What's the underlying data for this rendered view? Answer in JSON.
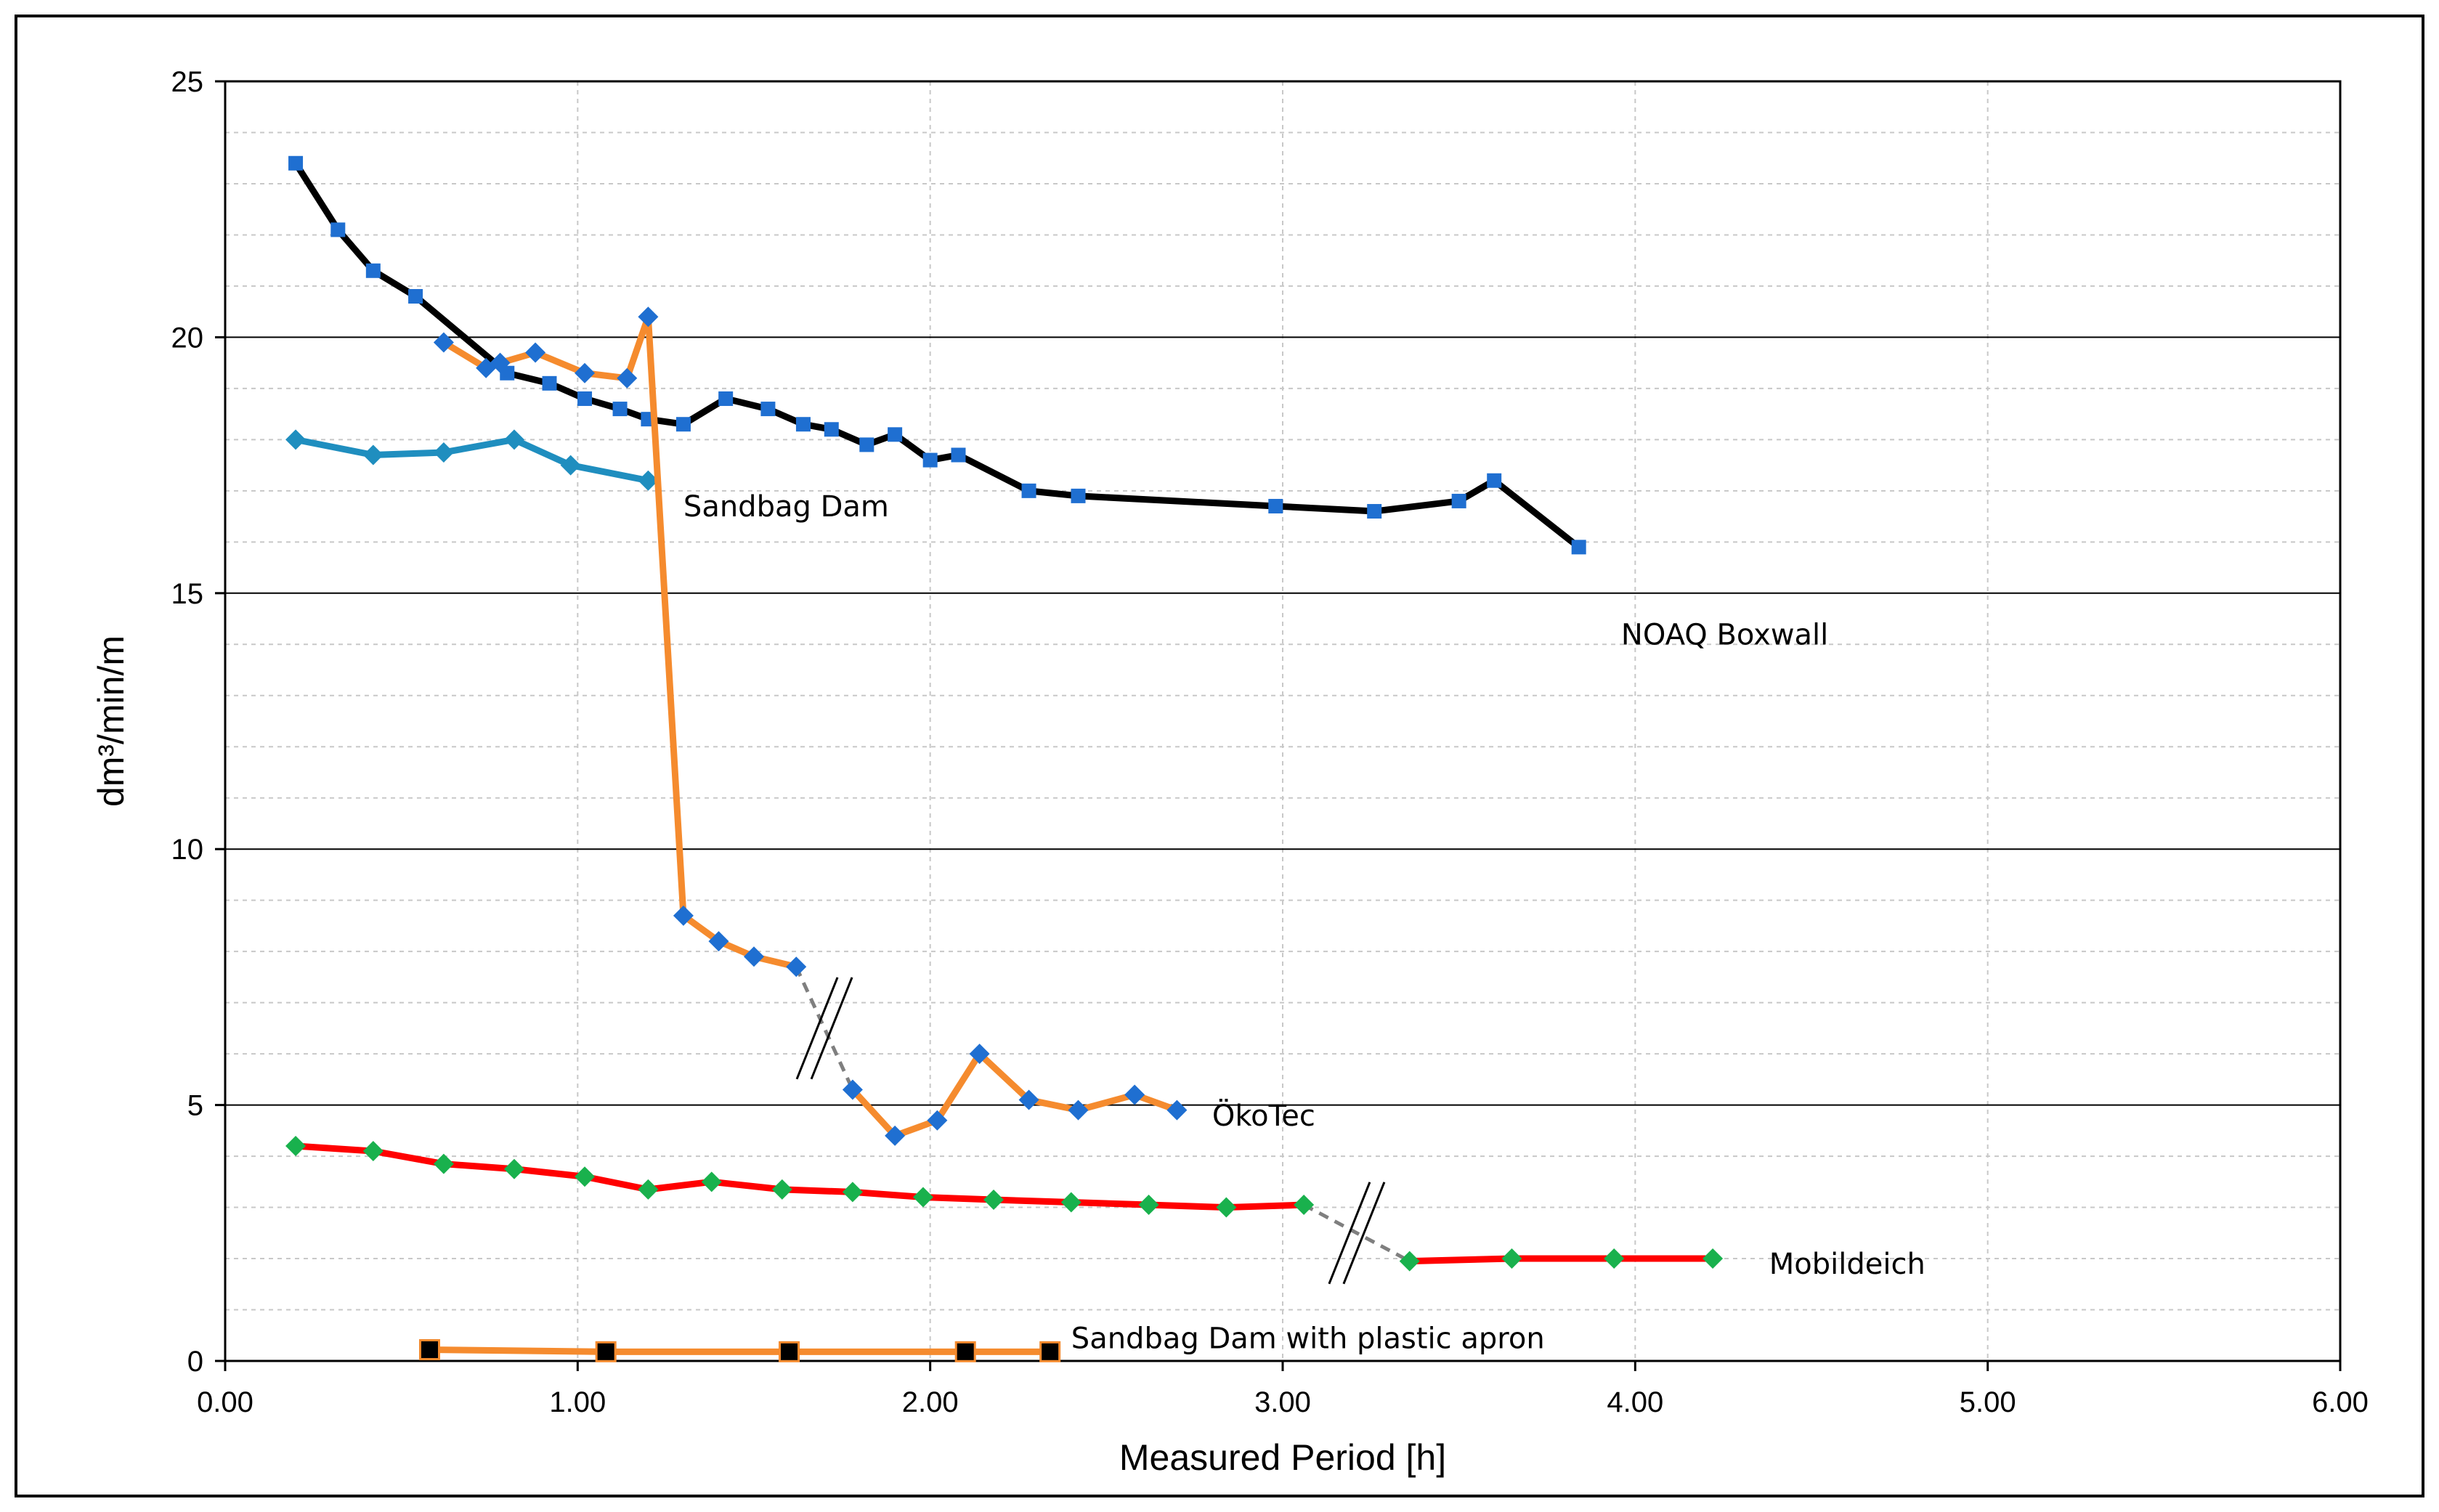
{
  "chart_data": {
    "type": "line",
    "title": "",
    "xlabel": "Measured Period [h]",
    "ylabel": "dm³/min/m",
    "xlim": [
      0,
      6
    ],
    "ylim": [
      0,
      25
    ],
    "x_ticks": [
      "0.00",
      "1.00",
      "2.00",
      "3.00",
      "4.00",
      "5.00",
      "6.00"
    ],
    "y_ticks": [
      "0",
      "5",
      "10",
      "15",
      "20",
      "25"
    ],
    "grid": {
      "major_y": true,
      "minor_y": true,
      "vertical": true
    },
    "series": [
      {
        "name": "NOAQ Boxwall",
        "line_color": "#000000",
        "marker_color": "#1f6fd1",
        "marker": "square",
        "points": [
          [
            0.2,
            23.4
          ],
          [
            0.32,
            22.1
          ],
          [
            0.42,
            21.3
          ],
          [
            0.54,
            20.8
          ],
          [
            0.8,
            19.3
          ],
          [
            0.92,
            19.1
          ],
          [
            1.02,
            18.8
          ],
          [
            1.12,
            18.6
          ],
          [
            1.2,
            18.4
          ],
          [
            1.3,
            18.3
          ],
          [
            1.42,
            18.8
          ],
          [
            1.54,
            18.6
          ],
          [
            1.64,
            18.3
          ],
          [
            1.72,
            18.2
          ],
          [
            1.82,
            17.9
          ],
          [
            1.9,
            18.1
          ],
          [
            2.0,
            17.6
          ],
          [
            2.08,
            17.7
          ],
          [
            2.28,
            17.0
          ],
          [
            2.42,
            16.9
          ],
          [
            2.98,
            16.7
          ],
          [
            3.26,
            16.6
          ],
          [
            3.5,
            16.8
          ],
          [
            3.6,
            17.2
          ],
          [
            3.84,
            15.9
          ]
        ]
      },
      {
        "name": "Sandbag Dam",
        "line_color": "#1f8ebf",
        "marker_color": "#1f8ebf",
        "marker": "diamond",
        "points": [
          [
            0.2,
            18.0
          ],
          [
            0.42,
            17.7
          ],
          [
            0.62,
            17.75
          ],
          [
            0.82,
            18.0
          ],
          [
            0.98,
            17.5
          ],
          [
            1.2,
            17.2
          ]
        ]
      },
      {
        "name": "ÖkoTec",
        "line_color": "#f58b2e",
        "marker_color": "#1f6fd1",
        "marker": "diamond",
        "segments": [
          [
            [
              0.62,
              19.9
            ],
            [
              0.74,
              19.4
            ],
            [
              0.78,
              19.5
            ],
            [
              0.88,
              19.7
            ],
            [
              1.02,
              19.3
            ],
            [
              1.14,
              19.2
            ],
            [
              1.2,
              20.4
            ],
            [
              1.3,
              8.7
            ],
            [
              1.4,
              8.2
            ],
            [
              1.5,
              7.9
            ],
            [
              1.62,
              7.7
            ]
          ],
          [
            [
              1.78,
              5.3
            ],
            [
              1.9,
              4.4
            ],
            [
              2.02,
              4.7
            ],
            [
              2.14,
              6.0
            ],
            [
              2.28,
              5.1
            ],
            [
              2.42,
              4.9
            ],
            [
              2.58,
              5.2
            ],
            [
              2.7,
              4.9
            ]
          ]
        ],
        "break_between": [
          [
            1.62,
            7.7
          ],
          [
            1.78,
            5.3
          ]
        ]
      },
      {
        "name": "Mobildeich",
        "line_color": "#ff0000",
        "marker_color": "#19b14d",
        "marker": "diamond",
        "segments": [
          [
            [
              0.2,
              4.2
            ],
            [
              0.42,
              4.1
            ],
            [
              0.62,
              3.85
            ],
            [
              0.82,
              3.75
            ],
            [
              1.02,
              3.6
            ],
            [
              1.2,
              3.35
            ],
            [
              1.38,
              3.5
            ],
            [
              1.58,
              3.35
            ],
            [
              1.78,
              3.3
            ],
            [
              1.98,
              3.2
            ],
            [
              2.18,
              3.15
            ],
            [
              2.4,
              3.1
            ],
            [
              2.62,
              3.05
            ],
            [
              2.84,
              3.0
            ],
            [
              3.06,
              3.05
            ]
          ],
          [
            [
              3.36,
              1.95
            ],
            [
              3.65,
              2.0
            ],
            [
              3.94,
              2.0
            ],
            [
              4.22,
              2.0
            ]
          ]
        ],
        "break_between": [
          [
            3.06,
            3.05
          ],
          [
            3.36,
            1.95
          ]
        ]
      },
      {
        "name": "Sandbag Dam with plastic apron",
        "line_color": "#f58b2e",
        "marker_color": "#000000",
        "marker": "square",
        "points": [
          [
            0.58,
            0.22
          ],
          [
            1.08,
            0.18
          ],
          [
            1.6,
            0.18
          ],
          [
            2.1,
            0.18
          ],
          [
            2.34,
            0.18
          ]
        ]
      }
    ],
    "annotations": [
      {
        "text": "Sandbag Dam",
        "x": 1.3,
        "y": 16.5
      },
      {
        "text": "NOAQ Boxwall",
        "x": 3.96,
        "y": 14.0
      },
      {
        "text": "ÖkoTec",
        "x": 2.8,
        "y": 4.6
      },
      {
        "text": "Mobildeich",
        "x": 4.38,
        "y": 1.7
      },
      {
        "text": "Sandbag Dam with plastic apron",
        "x": 2.4,
        "y": 0.25
      }
    ]
  }
}
